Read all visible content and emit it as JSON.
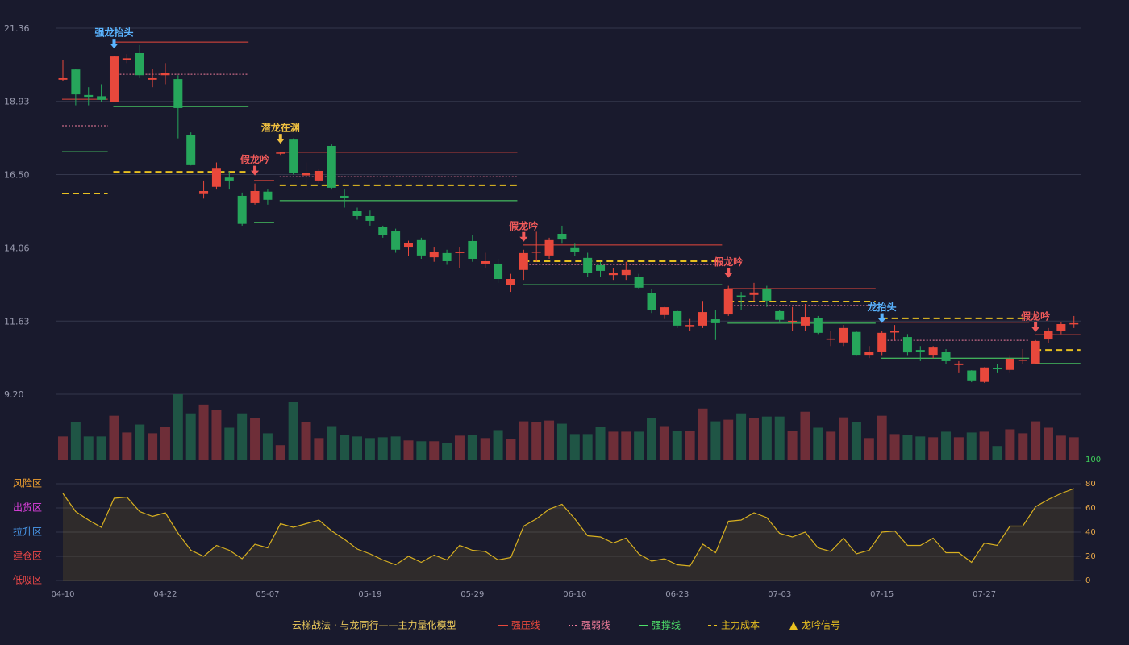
{
  "chart_data": {
    "type": "candlestick",
    "categories": [
      "04-10",
      null,
      null,
      null,
      null,
      null,
      null,
      null,
      "04-22",
      null,
      null,
      null,
      null,
      null,
      null,
      null,
      "05-07",
      null,
      null,
      null,
      null,
      null,
      null,
      null,
      "05-19",
      null,
      null,
      null,
      null,
      null,
      null,
      null,
      "05-29",
      null,
      null,
      null,
      null,
      null,
      null,
      null,
      "06-10",
      null,
      null,
      null,
      null,
      null,
      null,
      null,
      "06-23",
      null,
      null,
      null,
      null,
      null,
      null,
      null,
      "07-03",
      null,
      null,
      null,
      null,
      null,
      null,
      null,
      "07-15",
      null,
      null,
      null,
      null,
      null,
      null,
      null,
      "07-27",
      null,
      null,
      null,
      null,
      null,
      null,
      null
    ],
    "open": [
      19.65,
      19.99,
      19.14,
      19.1,
      18.92,
      20.3,
      20.53,
      19.65,
      19.8,
      19.67,
      17.82,
      15.85,
      16.09,
      16.4,
      15.79,
      15.55,
      15.93,
      17.19,
      17.66,
      16.47,
      16.3,
      17.45,
      15.79,
      15.28,
      15.12,
      14.77,
      14.61,
      14.1,
      14.32,
      13.75,
      13.89,
      13.89,
      14.29,
      13.54,
      13.54,
      12.84,
      13.33,
      13.91,
      13.81,
      14.53,
      14.08,
      13.73,
      13.49,
      13.16,
      13.16,
      13.11,
      12.55,
      11.83,
      11.96,
      11.47,
      11.48,
      11.69,
      11.85,
      12.48,
      12.5,
      12.71,
      11.96,
      11.62,
      11.48,
      11.72,
      11.03,
      10.92,
      11.27,
      10.51,
      10.62,
      11.26,
      11.1,
      10.67,
      10.51,
      10.62,
      10.17,
      9.99,
      9.61,
      10.07,
      10.01,
      10.32,
      10.22,
      11.02,
      11.29,
      11.53
    ],
    "high": [
      20.3,
      20.0,
      19.4,
      19.5,
      20.42,
      20.5,
      20.8,
      20.0,
      20.2,
      19.8,
      17.9,
      16.3,
      16.9,
      16.6,
      15.9,
      16.2,
      16.0,
      17.26,
      17.7,
      16.9,
      16.7,
      17.5,
      16.0,
      15.4,
      15.3,
      14.8,
      14.7,
      14.3,
      14.4,
      14.1,
      14.0,
      14.1,
      14.5,
      13.9,
      13.7,
      13.2,
      14.0,
      14.6,
      14.4,
      14.8,
      14.2,
      13.9,
      13.6,
      13.4,
      13.6,
      13.2,
      12.7,
      12.1,
      12.0,
      11.7,
      12.3,
      12.0,
      12.8,
      12.6,
      12.9,
      12.8,
      12.0,
      12.1,
      12.2,
      11.8,
      11.3,
      11.5,
      11.3,
      10.8,
      11.3,
      11.5,
      11.2,
      10.8,
      10.8,
      10.7,
      10.3,
      10.0,
      10.1,
      10.2,
      10.5,
      10.7,
      11.0,
      11.4,
      11.6,
      11.8
    ],
    "low": [
      19.6,
      18.8,
      18.8,
      18.9,
      18.9,
      20.2,
      19.7,
      19.4,
      19.5,
      17.7,
      16.8,
      15.7,
      16.0,
      16.0,
      14.8,
      15.5,
      15.5,
      17.15,
      16.5,
      16.0,
      16.2,
      16.0,
      15.4,
      15.0,
      14.8,
      14.4,
      13.9,
      13.8,
      13.7,
      13.6,
      13.5,
      13.4,
      13.6,
      13.4,
      12.9,
      12.6,
      13.0,
      13.6,
      13.7,
      14.2,
      13.8,
      13.1,
      13.1,
      13.0,
      13.0,
      12.7,
      11.9,
      11.7,
      11.4,
      11.3,
      11.4,
      11.0,
      11.8,
      12.0,
      12.3,
      12.1,
      11.6,
      11.3,
      11.3,
      11.2,
      10.8,
      10.8,
      10.5,
      10.4,
      10.5,
      11.0,
      10.5,
      10.3,
      10.4,
      10.2,
      9.9,
      9.6,
      9.58,
      9.9,
      9.9,
      10.2,
      10.2,
      10.9,
      11.2,
      11.4
    ],
    "close": [
      19.7,
      19.16,
      19.08,
      18.98,
      20.42,
      20.36,
      19.8,
      19.7,
      19.86,
      18.71,
      16.81,
      15.95,
      16.72,
      16.3,
      14.86,
      15.95,
      15.66,
      17.23,
      16.54,
      16.54,
      16.62,
      16.06,
      15.71,
      15.12,
      14.96,
      14.48,
      14.0,
      14.21,
      13.81,
      13.94,
      13.62,
      13.94,
      13.7,
      13.62,
      13.03,
      13.03,
      13.89,
      13.94,
      14.32,
      14.34,
      13.94,
      13.22,
      13.3,
      13.22,
      13.33,
      12.74,
      12.01,
      12.09,
      11.48,
      11.5,
      11.93,
      11.56,
      12.71,
      12.45,
      12.58,
      12.31,
      11.67,
      11.64,
      11.77,
      11.24,
      11.05,
      11.4,
      10.51,
      10.62,
      11.24,
      11.29,
      10.59,
      10.62,
      10.75,
      10.3,
      10.22,
      9.66,
      10.09,
      10.04,
      10.38,
      10.35,
      10.97,
      11.29,
      11.53,
      11.56
    ],
    "color_up": "#e8483c",
    "color_down": "#26a65b",
    "ylim": [
      9.2,
      21.36
    ],
    "yticks": [
      21.36,
      18.93,
      {
        "value": 16.5,
        "label": "16.50"
      },
      14.06,
      11.63,
      {
        "value": 9.2,
        "label": "9.20"
      }
    ],
    "grid": true,
    "volume": {
      "values": [
        29,
        47,
        29,
        29,
        55,
        34,
        44,
        33,
        41,
        82,
        58,
        69,
        62,
        40,
        58,
        52,
        33,
        18,
        72,
        47,
        27,
        42,
        31,
        29,
        27,
        28,
        29,
        24,
        23,
        23,
        21,
        30,
        31,
        27,
        37,
        26,
        48,
        47,
        49,
        45,
        32,
        32,
        41,
        35,
        35,
        35,
        52,
        42,
        36,
        36,
        64,
        48,
        50,
        58,
        52,
        54,
        54,
        36,
        60,
        40,
        35,
        53,
        47,
        27,
        55,
        32,
        31,
        29,
        28,
        35,
        28,
        34,
        35,
        17,
        38,
        33,
        48,
        40,
        30,
        28
      ],
      "ylim": [
        0,
        82
      ],
      "color_up": "#6e2e38",
      "color_down": "#1f5545"
    },
    "levels": [
      {
        "name": "强压线",
        "color": "#e8483c",
        "dash": "solid",
        "values": [
          19.0,
          19.0,
          19.0,
          19.0,
          20.9,
          20.9,
          20.9,
          20.9,
          20.9,
          20.9,
          20.9,
          20.9,
          20.9,
          20.9,
          20.9,
          16.3,
          16.3,
          17.24,
          17.24,
          17.24,
          17.24,
          17.24,
          17.24,
          17.24,
          17.24,
          17.24,
          17.24,
          17.24,
          17.24,
          17.24,
          17.24,
          17.24,
          17.24,
          17.24,
          17.24,
          17.24,
          14.16,
          14.16,
          14.16,
          14.16,
          14.16,
          14.16,
          14.16,
          14.16,
          14.16,
          14.16,
          14.16,
          14.16,
          14.16,
          14.16,
          14.16,
          14.16,
          12.71,
          12.71,
          12.71,
          12.71,
          12.71,
          12.71,
          12.71,
          12.71,
          12.71,
          12.71,
          12.71,
          12.71,
          11.59,
          11.59,
          11.59,
          11.59,
          11.59,
          11.59,
          11.59,
          11.59,
          11.59,
          11.59,
          11.59,
          11.59,
          11.18,
          11.18,
          11.18,
          11.18
        ]
      },
      {
        "name": "强弱线",
        "color": "#f07c9a",
        "dash": "dotted",
        "values": [
          18.12,
          18.12,
          18.12,
          18.12,
          19.83,
          19.83,
          19.83,
          19.83,
          19.83,
          19.83,
          19.83,
          19.83,
          19.83,
          19.83,
          19.83,
          null,
          null,
          16.43,
          16.43,
          16.43,
          16.43,
          16.43,
          16.43,
          16.43,
          16.43,
          16.43,
          16.43,
          16.43,
          16.43,
          16.43,
          16.43,
          16.43,
          16.43,
          16.43,
          16.43,
          16.43,
          13.51,
          13.51,
          13.51,
          13.51,
          13.51,
          13.51,
          13.51,
          13.51,
          13.51,
          13.51,
          13.51,
          13.51,
          13.51,
          13.51,
          13.51,
          13.51,
          12.15,
          12.15,
          12.15,
          12.15,
          12.15,
          12.15,
          12.15,
          12.15,
          12.15,
          12.15,
          12.15,
          12.15,
          10.99,
          10.99,
          10.99,
          10.99,
          10.99,
          10.99,
          10.99,
          10.99,
          10.99,
          10.99,
          10.99,
          10.99,
          null,
          null,
          null,
          null
        ]
      },
      {
        "name": "强撑线",
        "color": "#4ee06a",
        "dash": "solid",
        "values": [
          17.26,
          17.26,
          17.26,
          17.26,
          18.76,
          18.76,
          18.76,
          18.76,
          18.76,
          18.76,
          18.76,
          18.76,
          18.76,
          18.76,
          18.76,
          14.91,
          14.91,
          15.63,
          15.63,
          15.63,
          15.63,
          15.63,
          15.63,
          15.63,
          15.63,
          15.63,
          15.63,
          15.63,
          15.63,
          15.63,
          15.63,
          15.63,
          15.63,
          15.63,
          15.63,
          15.63,
          12.84,
          12.84,
          12.84,
          12.84,
          12.84,
          12.84,
          12.84,
          12.84,
          12.84,
          12.84,
          12.84,
          12.84,
          12.84,
          12.84,
          12.84,
          12.84,
          11.56,
          11.56,
          11.56,
          11.56,
          11.56,
          11.56,
          11.56,
          11.56,
          11.56,
          11.56,
          11.56,
          11.56,
          10.4,
          10.4,
          10.4,
          10.4,
          10.4,
          10.4,
          10.4,
          10.4,
          10.4,
          10.4,
          10.4,
          10.4,
          10.22,
          10.22,
          10.22,
          10.22
        ]
      },
      {
        "name": "主力成本",
        "color": "#e8c020",
        "dash": "dashed",
        "values": [
          15.87,
          15.87,
          15.87,
          15.87,
          16.59,
          16.59,
          16.59,
          16.59,
          16.59,
          16.59,
          16.59,
          16.59,
          16.59,
          16.59,
          16.59,
          null,
          null,
          16.14,
          16.14,
          16.14,
          16.14,
          16.14,
          16.14,
          16.14,
          16.14,
          16.14,
          16.14,
          16.14,
          16.14,
          16.14,
          16.14,
          16.14,
          16.14,
          16.14,
          16.14,
          16.14,
          13.62,
          13.62,
          13.62,
          13.62,
          13.62,
          13.62,
          13.62,
          13.62,
          13.62,
          13.62,
          13.62,
          13.62,
          13.62,
          13.62,
          13.62,
          13.62,
          12.28,
          12.28,
          12.28,
          12.28,
          12.28,
          12.28,
          12.28,
          12.28,
          12.28,
          12.28,
          12.28,
          12.28,
          11.72,
          11.72,
          11.72,
          11.72,
          11.72,
          11.72,
          11.72,
          11.72,
          11.72,
          11.72,
          11.72,
          11.72,
          10.67,
          10.67,
          10.67,
          10.67
        ]
      }
    ],
    "signals": [
      {
        "label": "强龙抬头",
        "index": 4,
        "color": "#5ab4ff"
      },
      {
        "label": "假龙吟",
        "index": 15,
        "color": "#f05a5a"
      },
      {
        "label": "潜龙在渊",
        "index": 17,
        "color": "#f0c040"
      },
      {
        "label": "假龙吟",
        "index": 36,
        "color": "#f05a5a"
      },
      {
        "label": "假龙吟",
        "index": 52,
        "color": "#f05a5a"
      },
      {
        "label": "龙抬头",
        "index": 64,
        "color": "#5ab4ff"
      },
      {
        "label": "假龙吟",
        "index": 76,
        "color": "#f05a5a"
      }
    ],
    "signal_legend": {
      "name": "龙吟信号",
      "color": "#e8c020"
    },
    "oscillator": {
      "values": [
        72,
        57,
        50,
        44,
        68,
        69,
        57,
        53,
        56,
        39,
        25,
        20,
        29,
        25,
        18,
        30,
        27,
        47,
        44,
        47,
        50,
        41,
        34,
        26,
        22,
        17,
        13,
        20,
        15,
        21,
        17,
        29,
        25,
        24,
        17,
        19,
        45,
        51,
        59,
        63,
        51,
        37,
        36,
        31,
        35,
        22,
        16,
        18,
        13,
        12,
        30,
        23,
        49,
        50,
        56,
        52,
        39,
        36,
        40,
        27,
        24,
        35,
        22,
        25,
        40,
        41,
        29,
        29,
        35,
        23,
        23,
        15,
        31,
        29,
        45,
        45,
        61,
        67,
        72,
        76
      ],
      "ylim": [
        0,
        100
      ],
      "yticks": [
        0,
        20,
        40,
        60,
        80,
        100
      ],
      "color": "#d8b020",
      "zones": [
        {
          "label": "风险区",
          "value": 80,
          "color": "#f0a030"
        },
        {
          "label": "出货区",
          "value": 60,
          "color": "#e040e0"
        },
        {
          "label": "拉升区",
          "value": 40,
          "color": "#4a9cf0"
        },
        {
          "label": "建仓区",
          "value": 20,
          "color": "#f04848"
        },
        {
          "label": "低吸区",
          "value": 0,
          "color": "#f04848"
        }
      ]
    },
    "legend_title": "云梯战法 · 与龙同行——主力量化模型"
  }
}
